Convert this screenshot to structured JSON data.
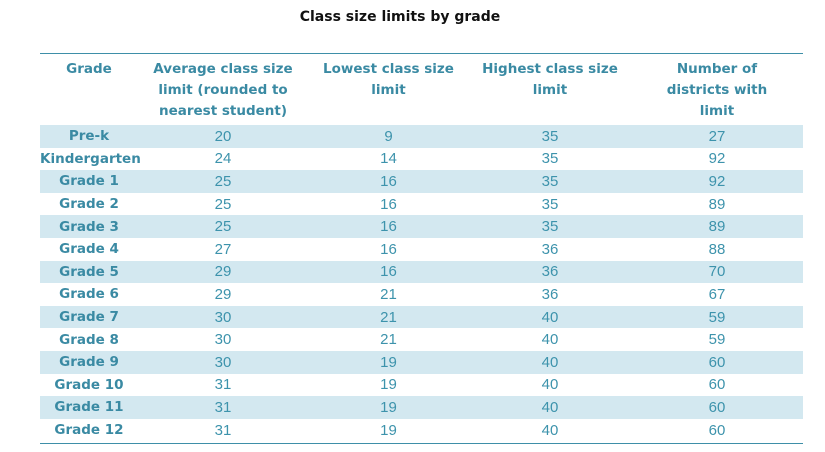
{
  "chart_data": {
    "type": "table",
    "title": "Class size limits  by grade",
    "columns": [
      [
        "Grade"
      ],
      [
        "Average class size",
        "limit (rounded to",
        "nearest student)"
      ],
      [
        "Lowest class size",
        "limit"
      ],
      [
        "Highest class size",
        "limit"
      ],
      [
        "Number of",
        "districts with",
        "limit"
      ]
    ],
    "rows": [
      {
        "grade": "Pre-k",
        "avg": "20",
        "low": "9",
        "high": "35",
        "districts": "27"
      },
      {
        "grade": "Kindergarten",
        "avg": "24",
        "low": "14",
        "high": "35",
        "districts": "92"
      },
      {
        "grade": "Grade 1",
        "avg": "25",
        "low": "16",
        "high": "35",
        "districts": "92"
      },
      {
        "grade": "Grade 2",
        "avg": "25",
        "low": "16",
        "high": "35",
        "districts": "89"
      },
      {
        "grade": "Grade 3",
        "avg": "25",
        "low": "16",
        "high": "35",
        "districts": "89"
      },
      {
        "grade": "Grade 4",
        "avg": "27",
        "low": "16",
        "high": "36",
        "districts": "88"
      },
      {
        "grade": "Grade 5",
        "avg": "29",
        "low": "16",
        "high": "36",
        "districts": "70"
      },
      {
        "grade": "Grade 6",
        "avg": "29",
        "low": "21",
        "high": "36",
        "districts": "67"
      },
      {
        "grade": "Grade 7",
        "avg": "30",
        "low": "21",
        "high": "40",
        "districts": "59"
      },
      {
        "grade": "Grade 8",
        "avg": "30",
        "low": "21",
        "high": "40",
        "districts": "59"
      },
      {
        "grade": "Grade 9",
        "avg": "30",
        "low": "19",
        "high": "40",
        "districts": "60"
      },
      {
        "grade": "Grade 10",
        "avg": "31",
        "low": "19",
        "high": "40",
        "districts": "60"
      },
      {
        "grade": "Grade 11",
        "avg": "31",
        "low": "19",
        "high": "40",
        "districts": "60"
      },
      {
        "grade": "Grade 12",
        "avg": "31",
        "low": "19",
        "high": "40",
        "districts": "60"
      }
    ],
    "colors": {
      "header_text": "#3a8aa3",
      "value_text": "#3d93ac",
      "row_shade": "#d3e8f0",
      "rule": "#3e8fa8"
    }
  }
}
